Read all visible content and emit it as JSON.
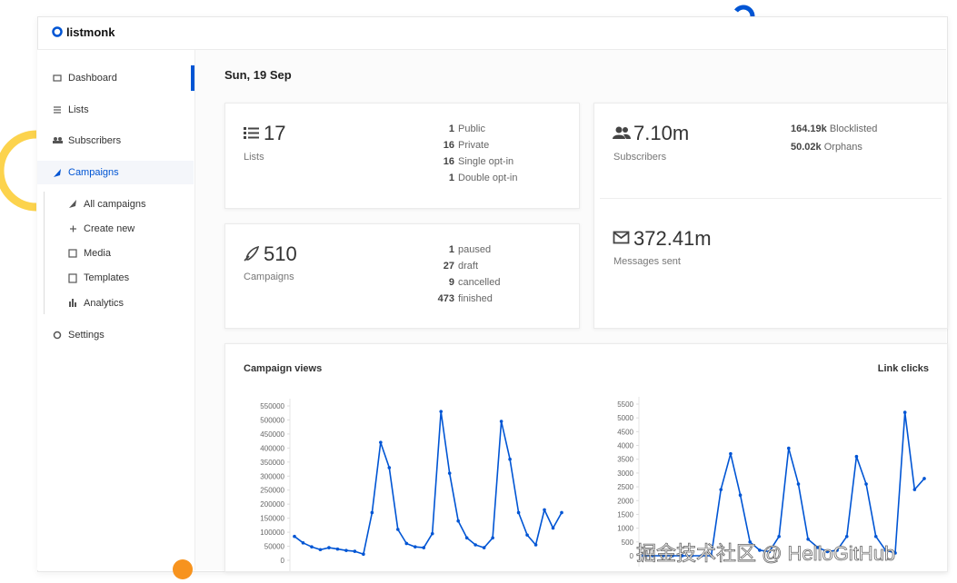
{
  "header": {
    "logo": "listmonk"
  },
  "sidebar": {
    "items": [
      "Dashboard",
      "Lists",
      "Subscribers",
      "Campaigns"
    ],
    "sub_items": [
      "All campaigns",
      "Create new",
      "Media",
      "Templates",
      "Analytics"
    ],
    "footer_item": "Settings"
  },
  "date": "Sun, 19 Sep",
  "lists_card": {
    "count": 17,
    "label": "Lists",
    "breakdown": [
      {
        "count": 1,
        "label": "Public"
      },
      {
        "count": 16,
        "label": "Private"
      },
      {
        "count": 16,
        "label": "Single opt-in"
      },
      {
        "count": 1,
        "label": "Double opt-in"
      }
    ]
  },
  "campaigns_card": {
    "count": 510,
    "label": "Campaigns",
    "breakdown": [
      {
        "count": 1,
        "label": "paused"
      },
      {
        "count": 27,
        "label": "draft"
      },
      {
        "count": 9,
        "label": "cancelled"
      },
      {
        "count": 473,
        "label": "finished"
      }
    ]
  },
  "subscribers_card": {
    "count": "7.10m",
    "label": "Subscribers",
    "breakdown": [
      {
        "count": "164.19k",
        "label": "Blocklisted"
      },
      {
        "count": "50.02k",
        "label": "Orphans"
      }
    ]
  },
  "messages_card": {
    "count": "372.41m",
    "label": "Messages sent"
  },
  "charts": [
    {
      "type": "line",
      "title": "Campaign views",
      "color": "#0055d4",
      "ylim": [
        0,
        550000
      ],
      "yticks": [
        0,
        50000,
        100000,
        150000,
        200000,
        250000,
        300000,
        350000,
        400000,
        450000,
        500000,
        550000
      ],
      "values": [
        85000,
        62000,
        48000,
        38000,
        45000,
        40000,
        35000,
        32000,
        22000,
        170000,
        420000,
        330000,
        110000,
        60000,
        48000,
        45000,
        95000,
        530000,
        310000,
        140000,
        80000,
        55000,
        45000,
        80000,
        495000,
        360000,
        170000,
        90000,
        55000,
        180000,
        115000,
        170000
      ]
    },
    {
      "type": "line",
      "title": "Link clicks",
      "color": "#0055d4",
      "ylim": [
        0,
        5500
      ],
      "yticks": [
        0,
        500,
        1000,
        1500,
        2000,
        2500,
        3000,
        3500,
        4000,
        4500,
        5000,
        5500
      ],
      "values": [
        0,
        0,
        0,
        0,
        0,
        0,
        0,
        0,
        2400,
        3700,
        2200,
        500,
        200,
        150,
        700,
        3900,
        2600,
        600,
        300,
        150,
        200,
        700,
        3600,
        2600,
        700,
        200,
        100,
        5200,
        2400,
        2800
      ]
    }
  ],
  "watermark": "掘金技术社区 @ HelloGitHub"
}
